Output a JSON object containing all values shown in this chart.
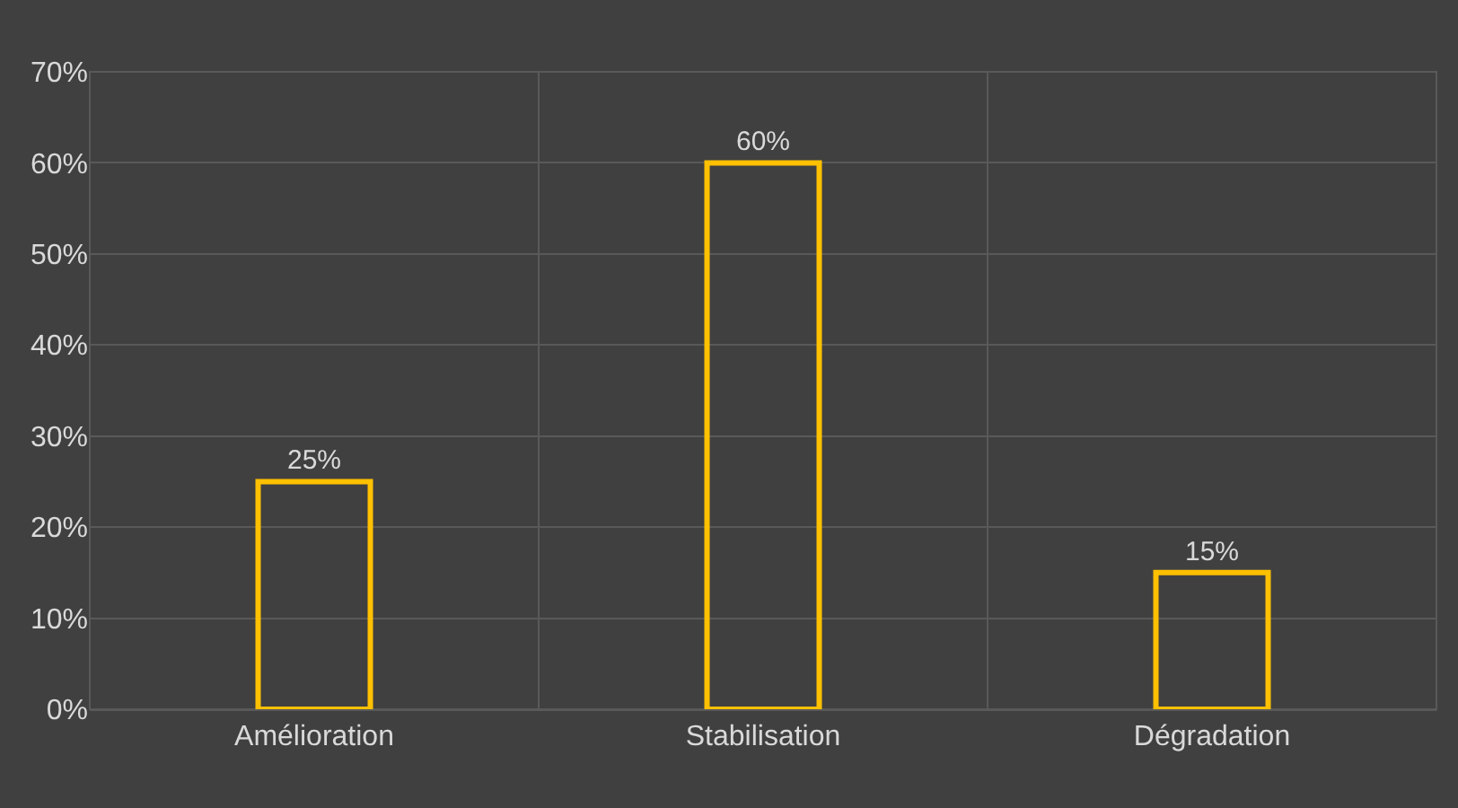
{
  "chart_data": {
    "type": "bar",
    "categories": [
      "Amélioration",
      "Stabilisation",
      "Dégradation"
    ],
    "values": [
      25,
      60,
      15
    ],
    "value_labels": [
      "25%",
      "60%",
      "15%"
    ],
    "color": "#ffc000",
    "ylim": [
      0,
      70
    ],
    "yticks": [
      {
        "value": 0,
        "label": "0%"
      },
      {
        "value": 10,
        "label": "10%"
      },
      {
        "value": 20,
        "label": "20%"
      },
      {
        "value": 30,
        "label": "30%"
      },
      {
        "value": 40,
        "label": "40%"
      },
      {
        "value": 50,
        "label": "50%"
      },
      {
        "value": 60,
        "label": "60%"
      },
      {
        "value": 70,
        "label": "70%"
      }
    ],
    "grid": true
  }
}
